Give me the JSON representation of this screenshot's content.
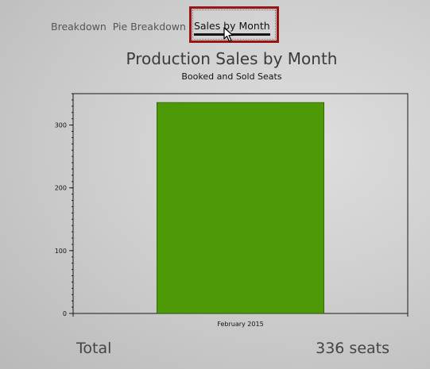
{
  "tabs": [
    {
      "label": "Breakdown",
      "selected": false
    },
    {
      "label": "Pie Breakdown",
      "selected": false
    },
    {
      "label": "Sales by Month",
      "selected": true
    }
  ],
  "chart": {
    "title": "Production Sales by Month",
    "subtitle": "Booked and Sold Seats"
  },
  "chart_data": {
    "type": "bar",
    "categories": [
      "February 2015"
    ],
    "values": [
      336
    ],
    "title": "Production Sales by Month",
    "subtitle": "Booked and Sold Seats",
    "xlabel": "",
    "ylabel": "",
    "ylim": [
      0,
      350
    ],
    "yticks": [
      0,
      100,
      200,
      300
    ],
    "grid": false,
    "bar_color": "#4e9a06"
  },
  "summary": {
    "total_label": "Total",
    "total_value": "336 seats"
  },
  "colors": {
    "selected_tab_border": "#9b1414",
    "bar": "#4e9a06"
  }
}
